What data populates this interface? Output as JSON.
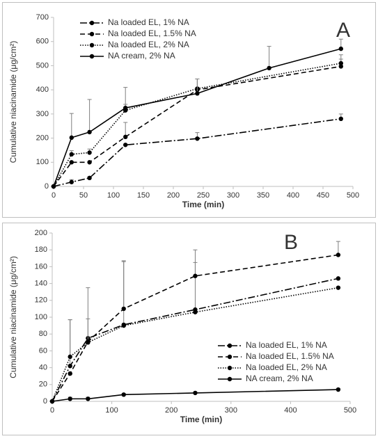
{
  "chart_data": [
    {
      "type": "line",
      "label": "A",
      "x_label": "Time (min)",
      "y_label": "Cumulative niacinamide (μg/cm²)",
      "xlim": [
        0,
        500
      ],
      "xticks": [
        0,
        50,
        100,
        150,
        200,
        250,
        300,
        350,
        400,
        450,
        500
      ],
      "ylim": [
        0,
        700
      ],
      "yticks": [
        0,
        100,
        200,
        300,
        400,
        500,
        600,
        700
      ],
      "legend": "upper left",
      "series": [
        {
          "name": "Na loaded EL, 1% NA",
          "color": "#000000",
          "dash": "dashdot",
          "x": [
            0,
            30,
            60,
            120,
            240,
            480
          ],
          "values": [
            0,
            18,
            35,
            172,
            198,
            280
          ],
          "errors": [
            0,
            10,
            5,
            0,
            25,
            20
          ]
        },
        {
          "name": "Na loaded EL, 1.5% NA",
          "color": "#000000",
          "dash": "dashed",
          "x": [
            0,
            30,
            60,
            120,
            240,
            480
          ],
          "values": [
            0,
            100,
            100,
            205,
            400,
            497
          ],
          "errors": [
            0,
            0,
            0,
            60,
            45,
            30
          ]
        },
        {
          "name": "Na loaded EL, 2% NA",
          "color": "#000000",
          "dash": "dotted",
          "x": [
            0,
            30,
            60,
            120,
            240,
            480
          ],
          "values": [
            0,
            133,
            140,
            315,
            405,
            510
          ],
          "errors": [
            0,
            15,
            15,
            25,
            40,
            35
          ]
        },
        {
          "name": "NA cream, 2% NA",
          "color": "#000000",
          "dash": "solid",
          "x": [
            0,
            30,
            60,
            120,
            240,
            360,
            480
          ],
          "values": [
            0,
            202,
            225,
            325,
            385,
            490,
            570
          ],
          "errors": [
            0,
            100,
            135,
            85,
            60,
            90,
            40
          ]
        }
      ]
    },
    {
      "type": "line",
      "label": "B",
      "x_label": "Time (min)",
      "y_label": "Cumulative niacinamide (μg/cm²)",
      "xlim": [
        0,
        500
      ],
      "xticks": [
        0,
        100,
        200,
        300,
        400,
        500
      ],
      "ylim": [
        0,
        200
      ],
      "yticks": [
        0,
        20,
        40,
        60,
        80,
        100,
        120,
        140,
        160,
        180,
        200
      ],
      "legend": "lower right",
      "series": [
        {
          "name": "Na loaded EL, 1% NA",
          "color": "#000000",
          "dash": "dashdot",
          "x": [
            0,
            30,
            60,
            120,
            240,
            480
          ],
          "values": [
            0,
            42,
            75,
            91,
            109,
            146
          ],
          "errors": [
            0,
            55,
            60,
            75,
            56,
            0
          ]
        },
        {
          "name": "Na loaded EL, 1.5% NA",
          "color": "#000000",
          "dash": "dashed",
          "x": [
            0,
            30,
            60,
            120,
            240,
            480
          ],
          "values": [
            0,
            33,
            71,
            110,
            149,
            174
          ],
          "errors": [
            0,
            0,
            27,
            57,
            31,
            16
          ]
        },
        {
          "name": "Na loaded EL, 2% NA",
          "color": "#000000",
          "dash": "dotted",
          "x": [
            0,
            30,
            60,
            120,
            240,
            480
          ],
          "values": [
            0,
            53,
            70,
            90,
            106,
            135
          ],
          "errors": [
            0,
            44,
            0,
            0,
            0,
            0
          ]
        },
        {
          "name": "NA cream, 2% NA",
          "color": "#000000",
          "dash": "solid",
          "x": [
            0,
            30,
            60,
            120,
            240,
            480
          ],
          "values": [
            0,
            3,
            3,
            8,
            10,
            14
          ],
          "errors": [
            0,
            2,
            2,
            1,
            1,
            1
          ]
        }
      ]
    }
  ]
}
